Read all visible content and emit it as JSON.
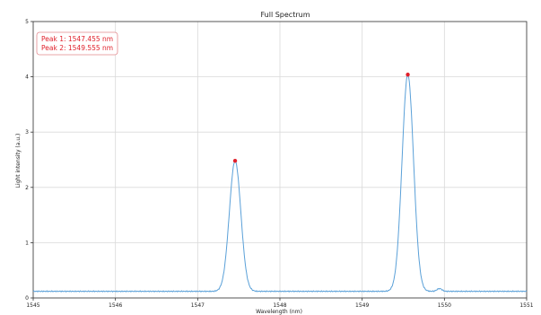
{
  "chart_data": {
    "type": "line",
    "title": "Full Spectrum",
    "xlabel": "Wavelength (nm)",
    "ylabel": "Light intensity (a.u.)",
    "xlim": [
      1545,
      1551
    ],
    "ylim": [
      0,
      5
    ],
    "xticks": [
      1545,
      1546,
      1547,
      1548,
      1549,
      1550,
      1551
    ],
    "yticks": [
      0,
      1,
      2,
      3,
      4,
      5
    ],
    "grid": true,
    "series": [
      {
        "color": "#5aa0d8",
        "baseline": 0.12,
        "noise": 0.01,
        "peaks": [
          {
            "center": 1547.455,
            "amplitude": 2.36,
            "sigma": 0.07
          },
          {
            "center": 1549.555,
            "amplitude": 3.92,
            "sigma": 0.07
          }
        ],
        "secondary_bump": {
          "center": 1549.94,
          "amplitude": 0.05,
          "sigma": 0.03
        }
      }
    ],
    "markers": [
      {
        "x": 1547.455,
        "y": 2.48,
        "color": "#e0202b"
      },
      {
        "x": 1549.555,
        "y": 4.04,
        "color": "#e0202b"
      }
    ],
    "annotation": {
      "lines": [
        "Peak 1: 1547.455 nm",
        "Peak 2: 1549.555 nm"
      ],
      "color": "#e0202b",
      "position": "top-left"
    }
  }
}
